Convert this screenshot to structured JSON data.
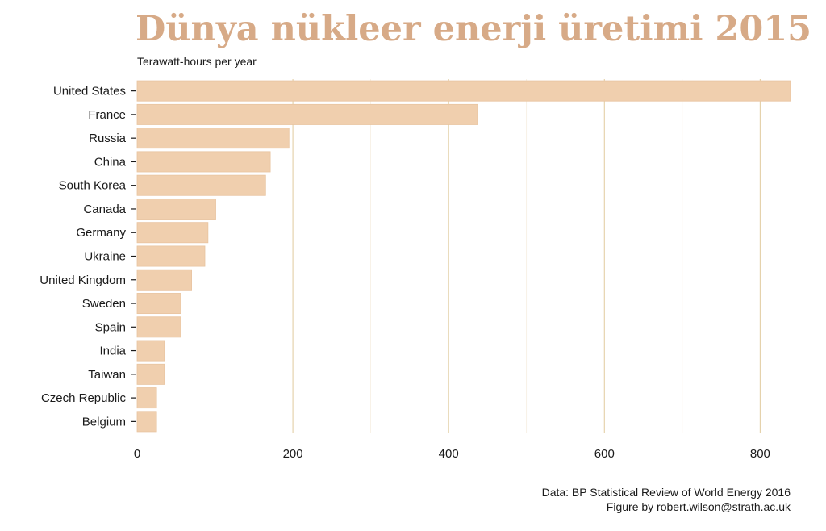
{
  "chart_data": {
    "type": "bar",
    "orientation": "horizontal",
    "title": "Dünya nükleer enerji üretimi 2015",
    "subtitle": "Terawatt-hours per year",
    "categories": [
      "United States",
      "France",
      "Russia",
      "China",
      "South Korea",
      "Canada",
      "Germany",
      "Ukraine",
      "United Kingdom",
      "Sweden",
      "Spain",
      "India",
      "Taiwan",
      "Czech Republic",
      "Belgium"
    ],
    "values": [
      839,
      437,
      195,
      171,
      165,
      101,
      91,
      87,
      70,
      56,
      56,
      35,
      35,
      25,
      25
    ],
    "xlim": [
      0,
      840
    ],
    "xticks": [
      0,
      200,
      400,
      600,
      800
    ],
    "grid": true,
    "bar_color": "#f0cfae",
    "grid_color": "#e3cfa6",
    "title_color": "#d7aa87",
    "caption": [
      "Data: BP Statistical Review of World Energy 2016",
      "Figure by robert.wilson@strath.ac.uk"
    ]
  }
}
